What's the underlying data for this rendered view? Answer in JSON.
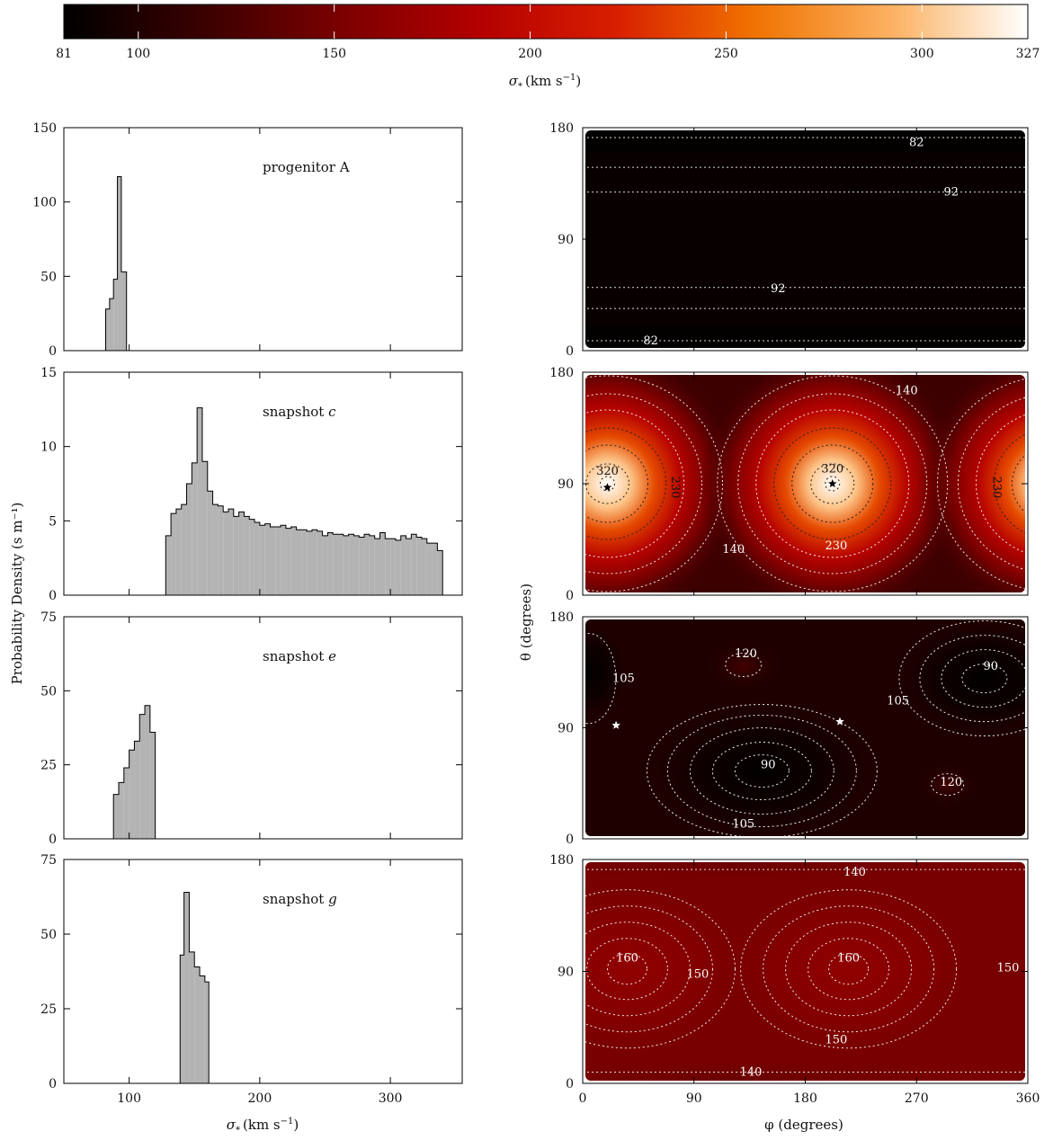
{
  "colorbar": {
    "label": "σ* (km s⁻¹)",
    "label_main": "σ",
    "label_sub": "*",
    "label_units": "(km s",
    "label_exp": "−1",
    "label_close": ")",
    "min": 81,
    "max": 327,
    "ticks": [
      81,
      100,
      150,
      200,
      250,
      300,
      327
    ],
    "tick_labels": [
      "81",
      "100",
      "150",
      "200",
      "250",
      "300",
      "327"
    ],
    "colormap": [
      "#000000",
      "#3a0000",
      "#7a0000",
      "#b30000",
      "#d81e00",
      "#f07200",
      "#fbb060",
      "#ffffff"
    ]
  },
  "left_axis": {
    "ylabel": "Probability Density  (s m⁻¹)",
    "xlabel": "σ* (km s⁻¹)",
    "x_ticks": [
      100,
      200,
      300
    ],
    "xlim": [
      50,
      355
    ]
  },
  "right_axis": {
    "ylabel": "θ (degrees)",
    "xlabel": "φ (degrees)",
    "x_ticks": [
      0,
      90,
      180,
      270,
      360
    ],
    "y_ticks": [
      0,
      90,
      180
    ],
    "xlim": [
      0,
      360
    ],
    "ylim": [
      0,
      180
    ]
  },
  "chart_data": [
    {
      "type": "bar",
      "panel": "histogram",
      "annotation": "progenitor A",
      "ylim": [
        0,
        150
      ],
      "y_ticks": [
        0,
        50,
        100,
        150
      ],
      "bins": [
        [
          82,
          85,
          28
        ],
        [
          85,
          88,
          35
        ],
        [
          88,
          91,
          48
        ],
        [
          91,
          94,
          117
        ],
        [
          94,
          98,
          53
        ]
      ]
    },
    {
      "type": "bar",
      "panel": "histogram",
      "annotation": "snapshot c",
      "ylim": [
        0,
        15
      ],
      "y_ticks": [
        0,
        5,
        10,
        15
      ],
      "bins": [
        [
          128,
          132,
          4.0
        ],
        [
          132,
          136,
          5.5
        ],
        [
          136,
          140,
          5.8
        ],
        [
          140,
          144,
          6.1
        ],
        [
          144,
          148,
          7.5
        ],
        [
          148,
          152,
          8.9
        ],
        [
          152,
          156,
          12.6
        ],
        [
          156,
          160,
          9.0
        ],
        [
          160,
          164,
          7.0
        ],
        [
          164,
          168,
          6.1
        ],
        [
          168,
          172,
          6.0
        ],
        [
          172,
          176,
          5.6
        ],
        [
          176,
          180,
          5.8
        ],
        [
          180,
          184,
          5.3
        ],
        [
          184,
          188,
          5.6
        ],
        [
          188,
          192,
          5.3
        ],
        [
          192,
          196,
          5.1
        ],
        [
          196,
          200,
          4.9
        ],
        [
          200,
          204,
          4.7
        ],
        [
          204,
          208,
          4.8
        ],
        [
          208,
          212,
          4.6
        ],
        [
          212,
          216,
          4.6
        ],
        [
          216,
          220,
          4.7
        ],
        [
          220,
          224,
          4.5
        ],
        [
          224,
          228,
          4.6
        ],
        [
          228,
          232,
          4.4
        ],
        [
          232,
          236,
          4.4
        ],
        [
          236,
          240,
          4.3
        ],
        [
          240,
          244,
          4.4
        ],
        [
          244,
          248,
          4.3
        ],
        [
          248,
          252,
          4.0
        ],
        [
          252,
          256,
          4.2
        ],
        [
          256,
          260,
          4.1
        ],
        [
          260,
          264,
          4.1
        ],
        [
          264,
          268,
          4.0
        ],
        [
          268,
          272,
          4.1
        ],
        [
          272,
          276,
          4.0
        ],
        [
          276,
          280,
          3.9
        ],
        [
          280,
          284,
          4.1
        ],
        [
          284,
          288,
          4.0
        ],
        [
          288,
          292,
          3.8
        ],
        [
          292,
          296,
          4.2
        ],
        [
          296,
          300,
          3.8
        ],
        [
          300,
          304,
          3.8
        ],
        [
          304,
          308,
          3.7
        ],
        [
          308,
          312,
          4.0
        ],
        [
          312,
          316,
          3.8
        ],
        [
          316,
          320,
          4.1
        ],
        [
          320,
          324,
          3.9
        ],
        [
          324,
          328,
          3.8
        ],
        [
          328,
          332,
          3.5
        ],
        [
          332,
          336,
          3.5
        ],
        [
          336,
          340,
          3.0
        ]
      ]
    },
    {
      "type": "bar",
      "panel": "histogram",
      "annotation": "snapshot e",
      "ylim": [
        0,
        75
      ],
      "y_ticks": [
        0,
        25,
        50,
        75
      ],
      "bins": [
        [
          88,
          92,
          15
        ],
        [
          92,
          96,
          19
        ],
        [
          96,
          100,
          24
        ],
        [
          100,
          104,
          30
        ],
        [
          104,
          108,
          33
        ],
        [
          108,
          112,
          42
        ],
        [
          112,
          116,
          45
        ],
        [
          116,
          120,
          36
        ]
      ]
    },
    {
      "type": "bar",
      "panel": "histogram",
      "annotation": "snapshot g",
      "ylim": [
        0,
        75
      ],
      "y_ticks": [
        0,
        25,
        50,
        75
      ],
      "bins": [
        [
          139,
          142,
          43
        ],
        [
          142,
          146,
          64
        ],
        [
          146,
          150,
          44
        ],
        [
          150,
          154,
          39
        ],
        [
          154,
          158,
          36
        ],
        [
          158,
          161,
          34
        ]
      ]
    },
    {
      "type": "heatmap",
      "panel": "sky map",
      "base_value": 83,
      "contour_labels": [
        {
          "text": "82",
          "phi": 270,
          "theta": 168
        },
        {
          "text": "92",
          "phi": 298,
          "theta": 128
        },
        {
          "text": "92",
          "phi": 158,
          "theta": 50
        },
        {
          "text": "82",
          "phi": 55,
          "theta": 8
        }
      ],
      "stars": []
    },
    {
      "type": "heatmap",
      "panel": "sky map",
      "base_value": 118,
      "contour_labels": [
        {
          "text": "140",
          "phi": 262,
          "theta": 165
        },
        {
          "text": "320",
          "phi": 20,
          "theta": 100
        },
        {
          "text": "230",
          "phi": 72,
          "theta": 90
        },
        {
          "text": "320",
          "phi": 202,
          "theta": 102
        },
        {
          "text": "230",
          "phi": 332,
          "theta": 90
        },
        {
          "text": "230",
          "phi": 205,
          "theta": 40
        },
        {
          "text": "140",
          "phi": 122,
          "theta": 37
        }
      ],
      "stars": [
        {
          "phi": 20,
          "theta": 87,
          "color": "#000000"
        },
        {
          "phi": 202,
          "theta": 90,
          "color": "#000000"
        }
      ]
    },
    {
      "type": "heatmap",
      "panel": "sky map",
      "base_value": 100,
      "contour_labels": [
        {
          "text": "120",
          "phi": 132,
          "theta": 150
        },
        {
          "text": "105",
          "phi": 33,
          "theta": 130
        },
        {
          "text": "90",
          "phi": 330,
          "theta": 140
        },
        {
          "text": "105",
          "phi": 255,
          "theta": 112
        },
        {
          "text": "90",
          "phi": 150,
          "theta": 60
        },
        {
          "text": "120",
          "phi": 298,
          "theta": 46
        },
        {
          "text": "105",
          "phi": 130,
          "theta": 12
        }
      ],
      "stars": [
        {
          "phi": 27,
          "theta": 92,
          "color": "#ffffff"
        },
        {
          "phi": 208,
          "theta": 95,
          "color": "#ffffff"
        }
      ]
    },
    {
      "type": "heatmap",
      "panel": "sky map",
      "base_value": 150,
      "contour_labels": [
        {
          "text": "140",
          "phi": 220,
          "theta": 170
        },
        {
          "text": "160",
          "phi": 36,
          "theta": 101
        },
        {
          "text": "150",
          "phi": 93,
          "theta": 88
        },
        {
          "text": "160",
          "phi": 215,
          "theta": 101
        },
        {
          "text": "150",
          "phi": 344,
          "theta": 93
        },
        {
          "text": "150",
          "phi": 205,
          "theta": 35
        },
        {
          "text": "140",
          "phi": 136,
          "theta": 9
        }
      ],
      "stars": []
    }
  ]
}
